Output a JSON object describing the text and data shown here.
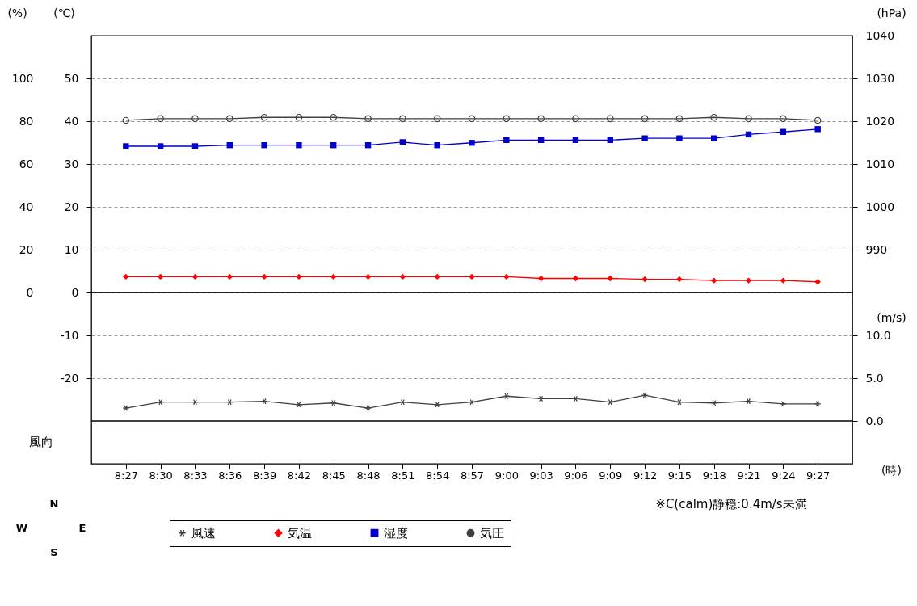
{
  "chart_data": [
    {
      "type": "line",
      "series": [
        {
          "name": "気温",
          "color": "#ff0000",
          "marker": "diamond",
          "values": [
            3.7,
            3.7,
            3.7,
            3.7,
            3.7,
            3.7,
            3.7,
            3.7,
            3.7,
            3.7,
            3.7,
            3.7,
            3.3,
            3.3,
            3.3,
            3.1,
            3.1,
            2.8,
            2.8,
            2.8,
            2.5
          ]
        },
        {
          "name": "湿度",
          "color": "#0000cc",
          "marker": "square",
          "axis": "y3",
          "values": [
            68.3,
            68.3,
            68.3,
            68.8,
            68.8,
            68.8,
            68.8,
            68.8,
            70.2,
            68.8,
            69.9,
            71.2,
            71.2,
            71.2,
            71.2,
            72.0,
            72.0,
            72.0,
            73.8,
            75.0,
            76.3
          ]
        },
        {
          "name": "気圧",
          "color": "#404040",
          "marker": "circle",
          "axis": "y2",
          "values": [
            1020.2,
            1020.6,
            1020.6,
            1020.6,
            1020.9,
            1020.9,
            1020.9,
            1020.6,
            1020.6,
            1020.6,
            1020.6,
            1020.6,
            1020.6,
            1020.6,
            1020.6,
            1020.6,
            1020.6,
            1020.9,
            1020.6,
            1020.6,
            1020.2
          ]
        }
      ],
      "ylabel": "(℃)",
      "ylim": [
        0,
        60
      ],
      "yticks": [
        0,
        10,
        20,
        30,
        40,
        50
      ],
      "y3label": "(%)",
      "y3lim": [
        0,
        120
      ],
      "y3ticks": [
        0,
        20,
        40,
        60,
        80,
        100
      ],
      "y2label": "(hPa)",
      "y2lim": [
        980,
        1040
      ],
      "y2ticks": [
        990,
        1000,
        1010,
        1020,
        1030,
        1040
      ],
      "tick_labels": "y",
      "grid": "y",
      "legend": "bottom",
      "line_style": "solid"
    },
    {
      "type": "line",
      "categories": [
        "8:27",
        "8:30",
        "8:33",
        "8:36",
        "8:39",
        "8:42",
        "8:45",
        "8:48",
        "8:51",
        "8:54",
        "8:57",
        "9:00",
        "9:03",
        "9:06",
        "9:09",
        "9:12",
        "9:15",
        "9:18",
        "9:21",
        "9:24",
        "9:27"
      ],
      "series": [
        {
          "name": "風速",
          "color": "#404040",
          "marker": "cross",
          "axis": "y2",
          "values": [
            1.5,
            2.2,
            2.2,
            2.2,
            2.3,
            1.9,
            2.1,
            1.5,
            2.2,
            1.9,
            2.2,
            2.9,
            2.6,
            2.6,
            2.2,
            3.0,
            2.2,
            2.1,
            2.3,
            2.0,
            2.0
          ]
        }
      ],
      "ylim": [
        -40,
        0
      ],
      "yticks": [
        -20,
        -10
      ],
      "y2label": "(m/s)",
      "y2lim": [
        -5,
        15
      ],
      "y2ticks": [
        {
          "value": 0,
          "label": "0.0"
        },
        {
          "value": 5,
          "label": "5.0"
        },
        {
          "value": 10,
          "label": "10.0"
        }
      ],
      "xlabel": "(時)",
      "ref_lines": [
        {
          "axis": "y2",
          "value": 0,
          "color": "#000000"
        }
      ],
      "annotations": [
        "風向",
        "※C(calm)静穏:0.4m/s未満",
        "N",
        "W",
        "E",
        "S"
      ],
      "grid": "y",
      "legend": "bottom",
      "line_style": "solid"
    }
  ]
}
